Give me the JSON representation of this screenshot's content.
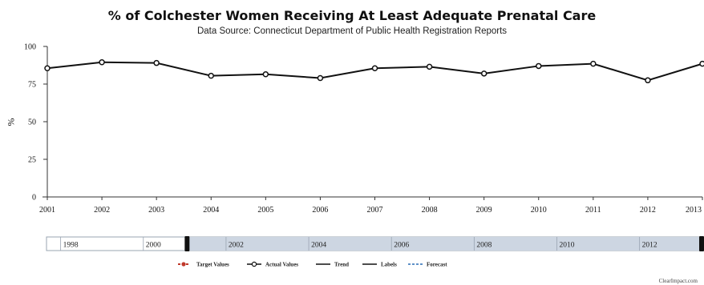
{
  "chart_data": {
    "type": "line",
    "title": "% of Colchester Women Receiving At Least Adequate Prenatal Care",
    "subtitle": "Data Source: Connecticut Department of Public Health Registration Reports",
    "ylabel": "%",
    "xlabel": "",
    "x": [
      "2001",
      "2002",
      "2003",
      "2004",
      "2005",
      "2006",
      "2007",
      "2008",
      "2009",
      "2010",
      "2011",
      "2012",
      "2013"
    ],
    "series": [
      {
        "name": "Actual Values",
        "color": "#111111",
        "values": [
          85.5,
          89.5,
          89,
          80.5,
          81.5,
          79,
          85.5,
          86.5,
          82,
          87,
          88.5,
          77.5,
          88.5
        ]
      }
    ],
    "ylim": [
      0,
      100
    ],
    "yticks": [
      0,
      25,
      50,
      75,
      100
    ],
    "grid": false,
    "navigator": {
      "labels": [
        "1998",
        "2000",
        "2002",
        "2004",
        "2006",
        "2008",
        "2010",
        "2012"
      ],
      "selected_start": "2001",
      "selected_end": "2013"
    },
    "legend": {
      "position": "bottom",
      "items": [
        {
          "label": "Target Values",
          "style": "target",
          "color": "#c0392b"
        },
        {
          "label": "Actual Values",
          "style": "actual",
          "color": "#111111"
        },
        {
          "label": "Trend",
          "style": "solid",
          "color": "#111111"
        },
        {
          "label": "Labels",
          "style": "solid",
          "color": "#111111"
        },
        {
          "label": "Forecast",
          "style": "dashed",
          "color": "#2a6db5"
        }
      ]
    },
    "credit": "ClearImpact.com"
  }
}
